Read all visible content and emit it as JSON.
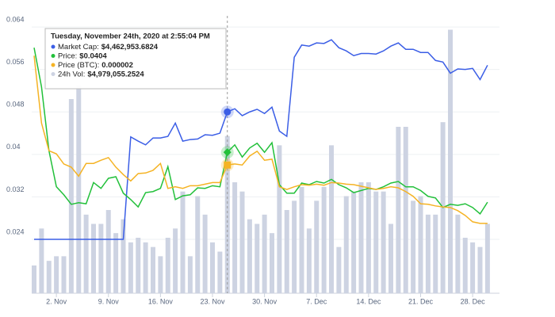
{
  "chart_data": {
    "type": "line",
    "categories": [
      null,
      null,
      null,
      "2. Nov",
      null,
      null,
      null,
      null,
      null,
      null,
      "9. Nov",
      null,
      null,
      null,
      null,
      null,
      null,
      "16. Nov",
      null,
      null,
      null,
      null,
      null,
      null,
      "23. Nov",
      null,
      null,
      null,
      null,
      null,
      null,
      "30. Nov",
      null,
      null,
      null,
      null,
      null,
      null,
      "7. Dec",
      null,
      null,
      null,
      null,
      null,
      null,
      "14. Dec",
      null,
      null,
      null,
      null,
      null,
      null,
      "21. Dec",
      null,
      null,
      null,
      null,
      null,
      null,
      "28. Dec",
      null,
      null
    ],
    "series": [
      {
        "color": "#3b5ee6",
        "values": [
          0.024,
          0.024,
          0.024,
          0.024,
          0.024,
          0.024,
          0.024,
          0.024,
          0.024,
          0.024,
          0.024,
          0.024,
          0.024,
          0.0433,
          0.0425,
          0.0418,
          0.0431,
          0.0431,
          0.0434,
          0.0459,
          0.0425,
          0.0428,
          0.0429,
          0.0437,
          0.0436,
          0.044,
          0.048,
          0.0486,
          0.0473,
          0.048,
          0.0485,
          0.0477,
          0.0489,
          0.0444,
          0.0434,
          0.0583,
          0.0606,
          0.0604,
          0.061,
          0.0609,
          0.0616,
          0.0601,
          0.0595,
          0.0586,
          0.059,
          0.059,
          0.0589,
          0.0595,
          0.0604,
          0.061,
          0.0598,
          0.0598,
          0.0592,
          0.0592,
          0.0577,
          0.0574,
          0.0553,
          0.0561,
          0.056,
          0.0562,
          0.0541,
          0.0568
        ]
      },
      {
        "color": "#22c03a",
        "values": [
          0.0601,
          0.0527,
          0.0407,
          0.0339,
          0.0324,
          0.0306,
          0.0309,
          0.0307,
          0.0347,
          0.0336,
          0.0355,
          0.0358,
          0.0327,
          0.0315,
          0.0301,
          0.0328,
          0.033,
          0.0336,
          0.0377,
          0.0315,
          0.0322,
          0.0324,
          0.0337,
          0.0336,
          0.0341,
          0.0339,
          0.0404,
          0.0418,
          0.0395,
          0.0412,
          0.0421,
          0.0404,
          0.0422,
          0.0343,
          0.0327,
          0.0327,
          0.0346,
          0.0343,
          0.0349,
          0.0346,
          0.0353,
          0.0343,
          0.0337,
          0.0328,
          0.0332,
          0.0336,
          0.0334,
          0.0339,
          0.0346,
          0.0349,
          0.0339,
          0.0339,
          0.0332,
          0.0321,
          0.0318,
          0.03,
          0.0306,
          0.0304,
          0.0307,
          0.03,
          0.0288,
          0.031
        ]
      },
      {
        "color": "#f5b324",
        "values": [
          0.0586,
          0.0459,
          0.0407,
          0.0401,
          0.0382,
          0.0376,
          0.0359,
          0.0383,
          0.0383,
          0.0389,
          0.0394,
          0.0376,
          0.0362,
          0.035,
          0.0364,
          0.0365,
          0.037,
          0.0383,
          0.0336,
          0.0339,
          0.0336,
          0.0341,
          0.0341,
          0.0344,
          0.0347,
          0.0347,
          0.038,
          0.0382,
          0.038,
          0.0397,
          0.0406,
          0.0389,
          0.0391,
          0.0339,
          0.0334,
          0.0339,
          0.0343,
          0.0342,
          0.0344,
          0.0342,
          0.0347,
          0.0346,
          0.0344,
          0.0343,
          0.034,
          0.0337,
          0.0334,
          0.0336,
          0.0339,
          0.0337,
          0.033,
          0.0321,
          0.0307,
          0.0306,
          0.0303,
          0.0301,
          0.03,
          0.0294,
          0.0285,
          0.0273,
          0.027,
          0.027
        ]
      },
      {
        "color": "#cdd3e2",
        "axis": "y2",
        "type": "bar",
        "values": [
          6,
          14,
          7,
          8,
          8,
          42,
          45,
          17,
          15,
          15,
          18,
          13,
          16,
          11,
          12,
          11,
          10,
          8,
          12,
          14,
          22,
          8,
          21,
          17,
          11,
          9,
          34,
          24,
          22,
          16,
          15,
          17,
          13,
          32,
          18,
          20,
          23,
          14,
          20,
          23,
          32,
          10,
          21,
          22,
          24,
          24,
          22,
          22,
          15,
          36,
          36,
          20,
          21,
          17,
          17,
          37,
          57,
          17,
          12,
          11,
          10,
          15
        ]
      }
    ],
    "ylim": [
      0.01385,
      0.0661
    ],
    "yticks": [
      0.024,
      0.032,
      0.04,
      0.048,
      0.056,
      0.064
    ],
    "y2lim": [
      0,
      60
    ],
    "grid": true,
    "hover_index": 26,
    "tooltip": {
      "title": "Tuesday, November 24th, 2020 at 2:55:04 PM",
      "rows": [
        {
          "label": "Market Cap:",
          "value": "$4,462,953.6824"
        },
        {
          "label": "Price:",
          "value": "$0.0404"
        },
        {
          "label": "Price (BTC):",
          "value": "0.000002"
        },
        {
          "label": "24h Vol:",
          "value": "$4,979,055.2524"
        }
      ]
    }
  }
}
